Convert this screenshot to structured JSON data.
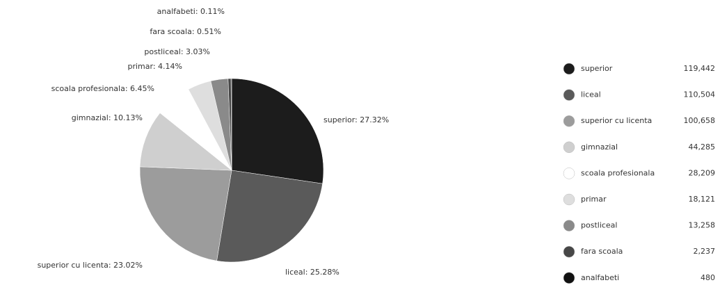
{
  "chart_data": {
    "type": "pie",
    "categories": [
      "superior",
      "liceal",
      "superior cu licenta",
      "gimnazial",
      "scoala profesionala",
      "primar",
      "postliceal",
      "fara scoala",
      "analfabeti"
    ],
    "values": [
      119442,
      110504,
      100658,
      44285,
      28209,
      18121,
      13258,
      2237,
      480
    ],
    "value_labels": [
      "119,442",
      "110,504",
      "100,658",
      "44,285",
      "28,209",
      "18,121",
      "13,258",
      "2,237",
      "480"
    ],
    "slice_labels": [
      "superior: 27.32%",
      "liceal: 25.28%",
      "superior cu licenta: 23.02%",
      "gimnazial: 10.13%",
      "scoala profesionala: 6.45%",
      "primar: 4.14%",
      "postliceal: 3.03%",
      "fara scoala: 0.51%",
      "analfabeti: 0.11%"
    ],
    "colors": [
      "#1c1c1c",
      "#5a5a5a",
      "#9c9c9c",
      "#cfcfcf",
      "#ffffff",
      "#dedede",
      "#8a8a8a",
      "#474747",
      "#111111"
    ]
  }
}
